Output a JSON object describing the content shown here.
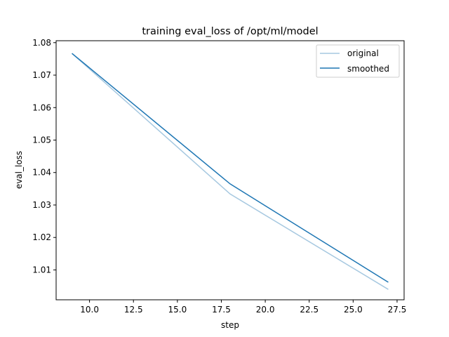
{
  "chart_data": {
    "type": "line",
    "title": "training eval_loss of /opt/ml/model",
    "xlabel": "step",
    "ylabel": "eval_loss",
    "xlim": [
      8.1,
      27.9
    ],
    "ylim": [
      1.0008,
      1.0806
    ],
    "xticks": [
      10.0,
      12.5,
      15.0,
      17.5,
      20.0,
      22.5,
      25.0,
      27.5
    ],
    "xtick_labels": [
      "10.0",
      "12.5",
      "15.0",
      "17.5",
      "20.0",
      "22.5",
      "25.0",
      "27.5"
    ],
    "yticks": [
      1.01,
      1.02,
      1.03,
      1.04,
      1.05,
      1.06,
      1.07,
      1.08
    ],
    "ytick_labels": [
      "1.01",
      "1.02",
      "1.03",
      "1.04",
      "1.05",
      "1.06",
      "1.07",
      "1.08"
    ],
    "grid": false,
    "legend_position": "top-right",
    "x": [
      9,
      18,
      27
    ],
    "series": [
      {
        "name": "original",
        "color": "#a6c8e0",
        "values": [
          1.0767,
          1.0334,
          1.004
        ]
      },
      {
        "name": "smoothed",
        "color": "#1f77b4",
        "values": [
          1.0767,
          1.0365,
          1.0062
        ]
      }
    ]
  }
}
